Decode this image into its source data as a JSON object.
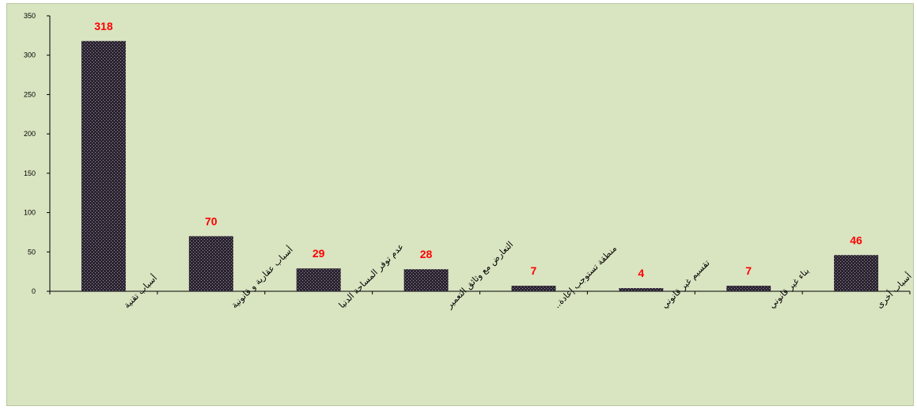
{
  "chart_data": {
    "type": "bar",
    "title": "",
    "xlabel": "",
    "ylabel": "",
    "categories": [
      "أسباب تقنية",
      "أسباب عقارية و قانونية",
      "عدم توفر المساحة الدنيا",
      "التعارض مع وثائق التعمير",
      "منطقة تستوجب إعادة..",
      "تقسيم غير قانوني",
      "بناء غير قانوني",
      "أسباب أخرى"
    ],
    "values": [
      318,
      70,
      29,
      28,
      7,
      4,
      7,
      46
    ],
    "ylim": [
      0,
      350
    ],
    "yticks": [
      0,
      50,
      100,
      150,
      200,
      250,
      300,
      350
    ],
    "grid": false,
    "legend": "none",
    "colors": {
      "background": "#d9e4c1",
      "bar": "#2b2430",
      "bar_pattern_dot": "#9a8fa6",
      "data_label": "#ff0000",
      "axis": "#000000"
    }
  }
}
